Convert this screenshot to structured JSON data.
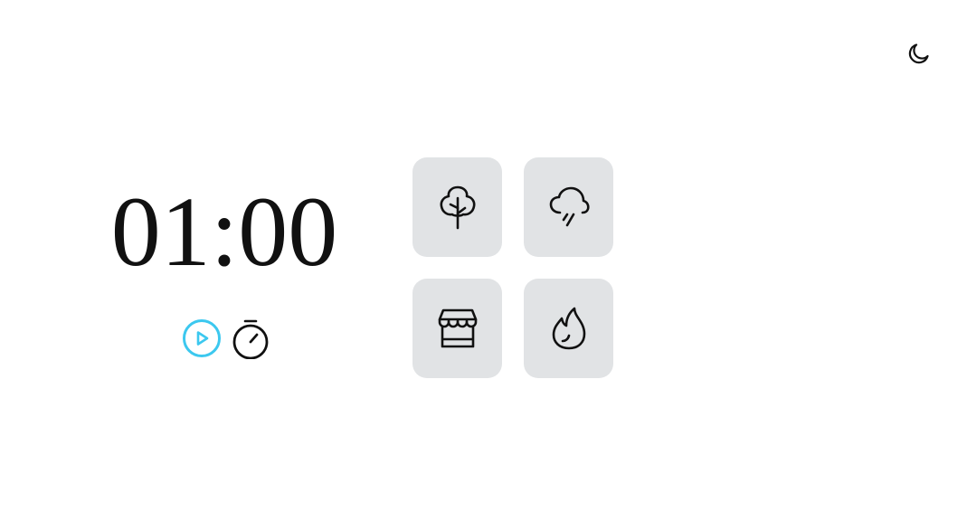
{
  "theme_toggle": {
    "icon": "moon-icon"
  },
  "timer": {
    "display": "01:00"
  },
  "controls": {
    "play": {
      "icon": "play-circle-icon",
      "color": "#3cc8ef"
    },
    "timer_mode": {
      "icon": "stopwatch-icon"
    }
  },
  "sounds": [
    {
      "icon": "tree-icon"
    },
    {
      "icon": "rain-cloud-icon"
    },
    {
      "icon": "storefront-icon"
    },
    {
      "icon": "flame-icon"
    }
  ],
  "colors": {
    "tile_background": "#e1e3e5",
    "text": "#111111",
    "accent": "#3cc8ef"
  }
}
